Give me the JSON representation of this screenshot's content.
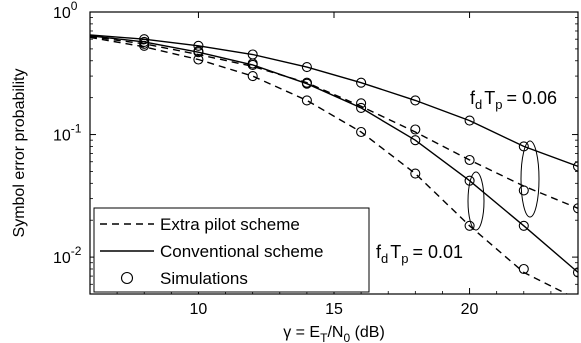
{
  "chart_data": {
    "type": "line",
    "xlabel": "γ = E_T/N_0 (dB)",
    "ylabel": "Symbol error probability",
    "xlim": [
      6,
      24
    ],
    "ylim": [
      0.005,
      1
    ],
    "yscale": "log",
    "xticks": [
      10,
      15,
      20
    ],
    "xtick_labels": [
      "10",
      "15",
      "20"
    ],
    "yticks": [
      1,
      0.1,
      0.01
    ],
    "ytick_labels": [
      {
        "base": "10",
        "exp": "0"
      },
      {
        "base": "10",
        "exp": "-1"
      },
      {
        "base": "10",
        "exp": "-2"
      }
    ],
    "grid": false,
    "legend_position": "bottom-left",
    "legend": [
      {
        "label": "Extra pilot scheme",
        "style": "dashed"
      },
      {
        "label": "Conventional scheme",
        "style": "solid"
      },
      {
        "label": "Simulations",
        "style": "circle"
      }
    ],
    "annotations": [
      {
        "prefix": "f",
        "sub1": "d",
        "mid": "T",
        "sub2": "p",
        "value": "= 0.06"
      },
      {
        "prefix": "f",
        "sub1": "d",
        "mid": "T",
        "sub2": "p",
        "value": "= 0.01"
      }
    ],
    "series": [
      {
        "style": "solid",
        "group": "f_dT_p = 0.06",
        "x": [
          6,
          8,
          10,
          12,
          14,
          16,
          18,
          20,
          22,
          24
        ],
        "y": [
          0.65,
          0.6,
          0.53,
          0.45,
          0.355,
          0.265,
          0.19,
          0.13,
          0.08,
          0.055
        ]
      },
      {
        "style": "dashed",
        "group": "f_dT_p = 0.06",
        "x": [
          6,
          8,
          10,
          12,
          14,
          16,
          18,
          20,
          22,
          24
        ],
        "y": [
          0.63,
          0.55,
          0.45,
          0.36,
          0.265,
          0.17,
          0.105,
          0.062,
          0.038,
          0.025
        ]
      },
      {
        "style": "solid",
        "group": "f_dT_p = 0.01",
        "x": [
          6,
          8,
          10,
          12,
          14,
          16,
          18,
          20,
          22,
          24
        ],
        "y": [
          0.64,
          0.57,
          0.47,
          0.37,
          0.26,
          0.165,
          0.09,
          0.042,
          0.018,
          0.0075
        ]
      },
      {
        "style": "dashed",
        "group": "f_dT_p = 0.01",
        "x": [
          6,
          8,
          10,
          12,
          14,
          16,
          18,
          20,
          22,
          24
        ],
        "y": [
          0.62,
          0.52,
          0.41,
          0.3,
          0.19,
          0.105,
          0.048,
          0.018,
          0.0075,
          0.0045
        ]
      }
    ],
    "simulations": [
      {
        "group": "f_dT_p = 0.06 conventional",
        "x": [
          8,
          10,
          12,
          14,
          16,
          18,
          20,
          22,
          24
        ],
        "y": [
          0.6,
          0.53,
          0.45,
          0.355,
          0.265,
          0.19,
          0.13,
          0.08,
          0.055
        ]
      },
      {
        "group": "f_dT_p = 0.06 extra pilot",
        "x": [
          8,
          10,
          12,
          14,
          16,
          18,
          20,
          22,
          24
        ],
        "y": [
          0.55,
          0.47,
          0.38,
          0.265,
          0.18,
          0.11,
          0.062,
          0.035,
          0.025
        ]
      },
      {
        "group": "f_dT_p = 0.01 conventional",
        "x": [
          8,
          10,
          12,
          14,
          16,
          18,
          20,
          22,
          24
        ],
        "y": [
          0.57,
          0.48,
          0.37,
          0.26,
          0.165,
          0.09,
          0.042,
          0.018,
          0.0075
        ]
      },
      {
        "group": "f_dT_p = 0.01 extra pilot",
        "x": [
          8,
          10,
          12,
          14,
          16,
          18,
          20,
          22
        ],
        "y": [
          0.53,
          0.41,
          0.3,
          0.19,
          0.105,
          0.048,
          0.018,
          0.008
        ]
      }
    ]
  }
}
